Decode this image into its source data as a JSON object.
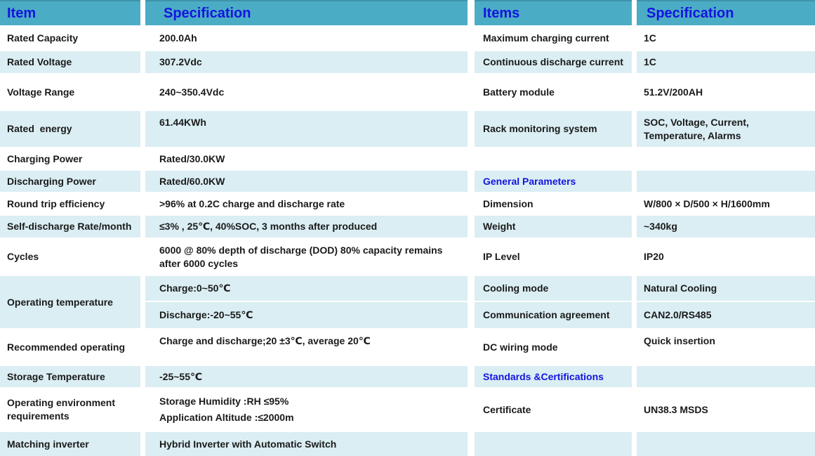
{
  "colors": {
    "header_bg": "#4BACC6",
    "row_alt_bg": "#DAEEF3",
    "row_bg": "#FFFFFF",
    "accent_text": "#1414DF",
    "body_text": "#1A1A1A"
  },
  "table": {
    "header": {
      "item_left": "Item",
      "spec_left": "Specification",
      "item_right": "Items",
      "spec_right": "Specification"
    },
    "rows": [
      {
        "left_item": "Rated Capacity",
        "left_spec": "200.0Ah",
        "right_item": "Maximum charging current",
        "right_spec": "1C"
      },
      {
        "left_item": "Rated Voltage",
        "left_spec": "307.2Vdc",
        "right_item": "Continuous discharge current",
        "right_spec": "1C"
      },
      {
        "left_item": "Voltage Range",
        "left_spec": "240~350.4Vdc",
        "right_item": "Battery module",
        "right_spec": "51.2V/200AH"
      },
      {
        "left_item": "Rated  energy",
        "left_spec": "61.44KWh",
        "right_item": "Rack monitoring system",
        "right_spec": "SOC, Voltage, Current, Temperature, Alarms"
      },
      {
        "left_item": "Charging Power",
        "left_spec": "Rated/30.0KW",
        "right_item": "",
        "right_spec": ""
      },
      {
        "left_item": "Discharging Power",
        "left_spec": "Rated/60.0KW",
        "right_item": "General Parameters",
        "right_item_section": true,
        "right_spec": ""
      },
      {
        "left_item": "Round trip efficiency",
        "left_spec": ">96% at 0.2C charge and discharge rate",
        "right_item": "Dimension",
        "right_spec": "W/800 × D/500 × H/1600mm"
      },
      {
        "left_item": "Self-discharge Rate/month",
        "left_spec": "≤3% , 25℃, 40%SOC, 3 months after produced",
        "right_item": "Weight",
        "right_spec": "~340kg"
      },
      {
        "left_item": "Cycles",
        "left_spec": "6000 @ 80% depth of discharge (DOD) 80% capacity remains after 6000 cycles",
        "right_item": "IP Level",
        "right_spec": "IP20"
      },
      {
        "left_item": "Operating temperature",
        "left_item_rowspan": 2,
        "left_spec": "Charge:0~50℃",
        "right_item": "Cooling mode",
        "right_spec": "Natural Cooling"
      },
      {
        "left_item": null,
        "left_spec": "Discharge:-20~55℃",
        "right_item": "Communication agreement",
        "right_spec": "CAN2.0/RS485"
      },
      {
        "left_item": "Recommended operating",
        "left_spec": "Charge and discharge;20 ±3℃, average 20℃",
        "right_item": "DC wiring mode",
        "right_spec": "Quick insertion"
      },
      {
        "left_item": "Storage Temperature",
        "left_spec": "-25~55℃",
        "right_item": "Standards &Certifications",
        "right_item_section": true,
        "right_spec": ""
      },
      {
        "left_item": "Operating environment requirements",
        "left_spec_lines": [
          "Storage Humidity :RH ≤95%",
          "Application Altitude :≤2000m"
        ],
        "right_item": "Certificate",
        "right_spec": "UN38.3 MSDS"
      },
      {
        "left_item": "Matching inverter",
        "left_spec": "Hybrid Inverter with Automatic Switch",
        "right_item": "",
        "right_spec": ""
      }
    ]
  }
}
